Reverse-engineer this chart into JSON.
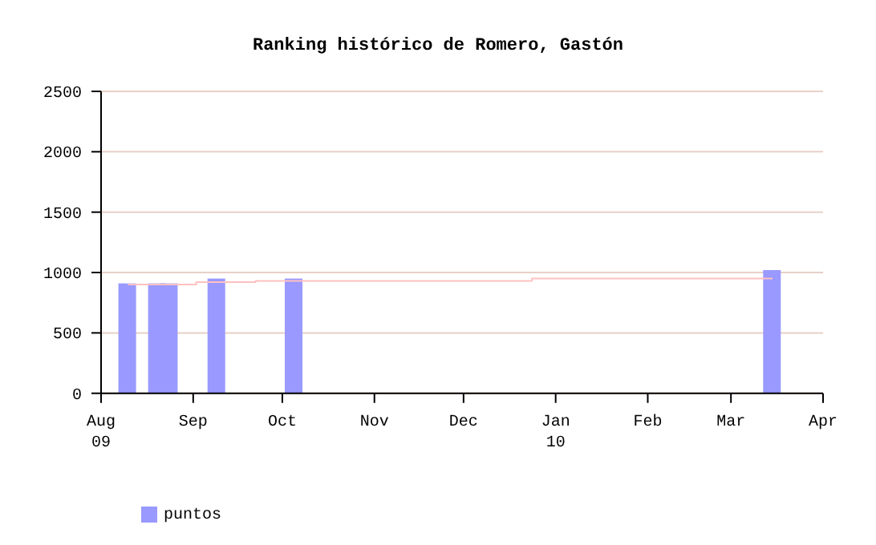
{
  "chart_data": {
    "type": "bar",
    "title": "Ranking histórico de Romero, Gastón",
    "x": [
      "2009-08-10",
      "2009-08-20",
      "2009-08-24",
      "2009-09-09",
      "2009-10-05",
      "2010-03-15"
    ],
    "series": [
      {
        "name": "puntos",
        "color": "#9999ff",
        "values": [
          910,
          910,
          910,
          950,
          950,
          1020
        ]
      },
      {
        "type": "step",
        "color": "#ffc0c0",
        "x": [
          "2009-08-10",
          "2009-09-02",
          "2009-09-22",
          "2009-12-24",
          "2010-03-15"
        ],
        "values": [
          900,
          920,
          930,
          950,
          950
        ]
      }
    ],
    "xlim": [
      "2009-08-01",
      "2010-04-01"
    ],
    "xticks": [
      {
        "value": "2009-08-01",
        "label": "Aug\n09"
      },
      {
        "value": "2009-09-01",
        "label": "Sep"
      },
      {
        "value": "2009-10-01",
        "label": "Oct"
      },
      {
        "value": "2009-11-01",
        "label": "Nov"
      },
      {
        "value": "2009-12-01",
        "label": "Dec"
      },
      {
        "value": "2010-01-01",
        "label": "Jan\n10"
      },
      {
        "value": "2010-02-01",
        "label": "Feb"
      },
      {
        "value": "2010-03-01",
        "label": "Mar"
      },
      {
        "value": "2010-04-01",
        "label": "Apr"
      }
    ],
    "ylim": [
      0,
      2500
    ],
    "yticks": [
      0,
      500,
      1000,
      1500,
      2000,
      2500
    ],
    "grid": "y",
    "legend": "bottom left"
  }
}
